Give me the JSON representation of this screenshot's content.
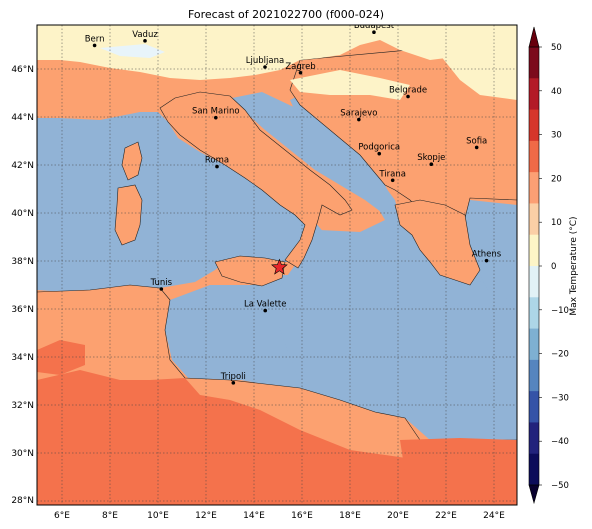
{
  "title": "Forecast of 2021022700 (f000-024)",
  "lon_ticks": [
    "6°E",
    "8°E",
    "10°E",
    "12°E",
    "14°E",
    "16°E",
    "18°E",
    "20°E",
    "22°E",
    "24°E"
  ],
  "lat_ticks": [
    "46°N",
    "44°N",
    "42°N",
    "40°N",
    "38°N",
    "36°N",
    "34°N",
    "32°N",
    "30°N",
    "28°N"
  ],
  "cities": [
    {
      "name": "Bern",
      "lon": 7.4,
      "lat": 46.95
    },
    {
      "name": "Vaduz",
      "lon": 9.5,
      "lat": 47.14
    },
    {
      "name": "Budapest",
      "lon": 19.04,
      "lat": 47.5
    },
    {
      "name": "Ljubljana",
      "lon": 14.5,
      "lat": 46.05
    },
    {
      "name": "Zagreb",
      "lon": 15.98,
      "lat": 45.81
    },
    {
      "name": "Belgrade",
      "lon": 20.46,
      "lat": 44.82
    },
    {
      "name": "San Marino",
      "lon": 12.45,
      "lat": 43.94
    },
    {
      "name": "Sarajevo",
      "lon": 18.41,
      "lat": 43.86
    },
    {
      "name": "Sofia",
      "lon": 23.32,
      "lat": 42.7
    },
    {
      "name": "Podgorica",
      "lon": 19.26,
      "lat": 42.44
    },
    {
      "name": "Skopje",
      "lon": 21.43,
      "lat": 42.0
    },
    {
      "name": "Roma",
      "lon": 12.5,
      "lat": 41.9
    },
    {
      "name": "Tirana",
      "lon": 19.82,
      "lat": 41.33
    },
    {
      "name": "Athens",
      "lon": 23.73,
      "lat": 37.98
    },
    {
      "name": "Tunis",
      "lon": 10.18,
      "lat": 36.8
    },
    {
      "name": "La Valette",
      "lon": 14.51,
      "lat": 35.9
    },
    {
      "name": "Tripoli",
      "lon": 13.18,
      "lat": 32.89
    }
  ],
  "marker": {
    "symbol": "star",
    "lon": 15.1,
    "lat": 37.7,
    "color": "#e8262a"
  },
  "colorbar": {
    "label": "Max Temperature (°C)",
    "ticks": [
      "50",
      "40",
      "30",
      "20",
      "10",
      "0",
      "−10",
      "−20",
      "−30",
      "−40",
      "−50"
    ],
    "colors": [
      "#7c0a1c",
      "#b31b27",
      "#d6362b",
      "#f06a47",
      "#fc9f74",
      "#fbcfa6",
      "#fdf5c7",
      "#e2f2f6",
      "#add6e7",
      "#7eb0d2",
      "#5685bf",
      "#3553a7",
      "#22237c",
      "#0c0c5a"
    ]
  },
  "colors": {
    "sea": "#91b3d6",
    "land_warm": "#fca170",
    "land_hot": "#f4724c",
    "land_cool": "#fdf3c8"
  }
}
